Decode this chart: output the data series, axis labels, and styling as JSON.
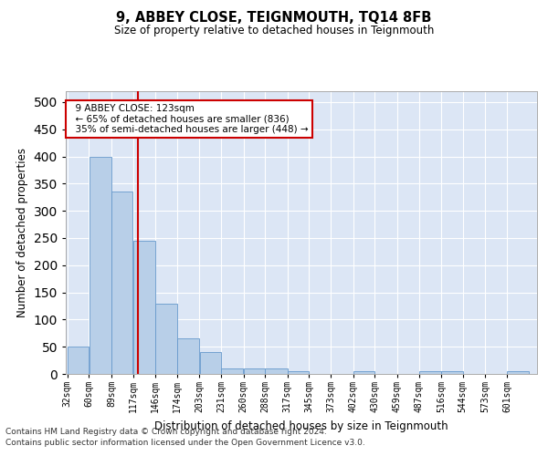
{
  "title1": "9, ABBEY CLOSE, TEIGNMOUTH, TQ14 8FB",
  "title2": "Size of property relative to detached houses in Teignmouth",
  "xlabel": "Distribution of detached houses by size in Teignmouth",
  "ylabel": "Number of detached properties",
  "footnote1": "Contains HM Land Registry data © Crown copyright and database right 2024.",
  "footnote2": "Contains public sector information licensed under the Open Government Licence v3.0.",
  "annotation_title": "9 ABBEY CLOSE: 123sqm",
  "annotation_line1": "← 65% of detached houses are smaller (836)",
  "annotation_line2": "35% of semi-detached houses are larger (448) →",
  "property_size": 123,
  "bar_color": "#b8cfe8",
  "bar_edge_color": "#6699cc",
  "vline_color": "#cc0000",
  "annotation_box_color": "#ffffff",
  "annotation_box_edge": "#cc0000",
  "background_color": "#dce6f5",
  "categories": [
    "32sqm",
    "60sqm",
    "89sqm",
    "117sqm",
    "146sqm",
    "174sqm",
    "203sqm",
    "231sqm",
    "260sqm",
    "288sqm",
    "317sqm",
    "345sqm",
    "373sqm",
    "402sqm",
    "430sqm",
    "459sqm",
    "487sqm",
    "516sqm",
    "544sqm",
    "573sqm",
    "601sqm"
  ],
  "values": [
    50,
    400,
    335,
    245,
    130,
    65,
    40,
    10,
    10,
    10,
    5,
    0,
    0,
    5,
    0,
    0,
    5,
    5,
    0,
    0,
    5
  ],
  "bin_edges": [
    32,
    60,
    89,
    117,
    146,
    174,
    203,
    231,
    260,
    288,
    317,
    345,
    373,
    402,
    430,
    459,
    487,
    516,
    544,
    573,
    601,
    630
  ],
  "ylim": [
    0,
    520
  ],
  "yticks": [
    0,
    50,
    100,
    150,
    200,
    250,
    300,
    350,
    400,
    450,
    500
  ]
}
